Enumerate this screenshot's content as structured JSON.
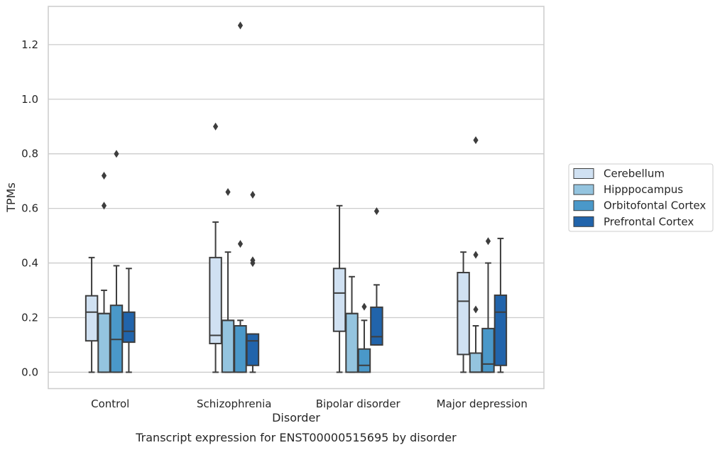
{
  "caption": "Transcript expression for ENST00000515695 by disorder",
  "chart_data": {
    "type": "box",
    "title": "",
    "xlabel": "Disorder",
    "ylabel": "TPMs",
    "ylim": [
      -0.06,
      1.34
    ],
    "yticks": [
      0.0,
      0.2,
      0.4,
      0.6,
      0.8,
      1.0,
      1.2
    ],
    "ytick_labels": [
      "0.0",
      "0.2",
      "0.4",
      "0.6",
      "0.8",
      "1.0",
      "1.2"
    ],
    "grid": "horizontal",
    "legend_position": "right",
    "categories": [
      "Control",
      "Schizophrenia",
      "Bipolar disorder",
      "Major depression"
    ],
    "series": [
      {
        "name": "Cerebellum",
        "color": "#d0e1f2",
        "boxes": [
          {
            "whislo": 0.0,
            "q1": 0.115,
            "med": 0.22,
            "q3": 0.28,
            "whishi": 0.42,
            "fliers": []
          },
          {
            "whislo": 0.0,
            "q1": 0.105,
            "med": 0.135,
            "q3": 0.42,
            "whishi": 0.55,
            "fliers": [
              0.9
            ]
          },
          {
            "whislo": 0.0,
            "q1": 0.15,
            "med": 0.29,
            "q3": 0.38,
            "whishi": 0.61,
            "fliers": []
          },
          {
            "whislo": 0.0,
            "q1": 0.065,
            "med": 0.26,
            "q3": 0.365,
            "whishi": 0.44,
            "fliers": []
          }
        ]
      },
      {
        "name": "Hipppocampus",
        "color": "#94c4df",
        "boxes": [
          {
            "whislo": 0.0,
            "q1": 0.0,
            "med": 0.215,
            "q3": 0.215,
            "whishi": 0.3,
            "fliers": [
              0.61,
              0.72
            ]
          },
          {
            "whislo": 0.0,
            "q1": 0.0,
            "med": 0.19,
            "q3": 0.19,
            "whishi": 0.44,
            "fliers": [
              0.66
            ]
          },
          {
            "whislo": 0.0,
            "q1": 0.0,
            "med": 0.215,
            "q3": 0.215,
            "whishi": 0.35,
            "fliers": []
          },
          {
            "whislo": 0.0,
            "q1": 0.0,
            "med": 0.0,
            "q3": 0.07,
            "whishi": 0.17,
            "fliers": [
              0.23,
              0.43,
              0.85
            ]
          }
        ]
      },
      {
        "name": "Orbitofontal Cortex",
        "color": "#4a98c9",
        "boxes": [
          {
            "whislo": 0.0,
            "q1": 0.0,
            "med": 0.12,
            "q3": 0.245,
            "whishi": 0.39,
            "fliers": [
              0.8
            ]
          },
          {
            "whislo": 0.0,
            "q1": 0.0,
            "med": 0.17,
            "q3": 0.17,
            "whishi": 0.19,
            "fliers": [
              0.47,
              1.27
            ]
          },
          {
            "whislo": 0.0,
            "q1": 0.0,
            "med": 0.025,
            "q3": 0.085,
            "whishi": 0.19,
            "fliers": [
              0.24
            ]
          },
          {
            "whislo": 0.0,
            "q1": 0.0,
            "med": 0.03,
            "q3": 0.16,
            "whishi": 0.4,
            "fliers": [
              0.48
            ]
          }
        ]
      },
      {
        "name": "Prefrontal Cortex",
        "color": "#2164ab",
        "boxes": [
          {
            "whislo": 0.0,
            "q1": 0.11,
            "med": 0.15,
            "q3": 0.22,
            "whishi": 0.38,
            "fliers": []
          },
          {
            "whislo": 0.0,
            "q1": 0.025,
            "med": 0.115,
            "q3": 0.14,
            "whishi": 0.14,
            "fliers": [
              0.4,
              0.41,
              0.65
            ]
          },
          {
            "whislo": 0.1,
            "q1": 0.1,
            "med": 0.13,
            "q3": 0.238,
            "whishi": 0.32,
            "fliers": [
              0.59
            ]
          },
          {
            "whislo": 0.0,
            "q1": 0.025,
            "med": 0.22,
            "q3": 0.282,
            "whishi": 0.49,
            "fliers": []
          }
        ]
      }
    ]
  }
}
